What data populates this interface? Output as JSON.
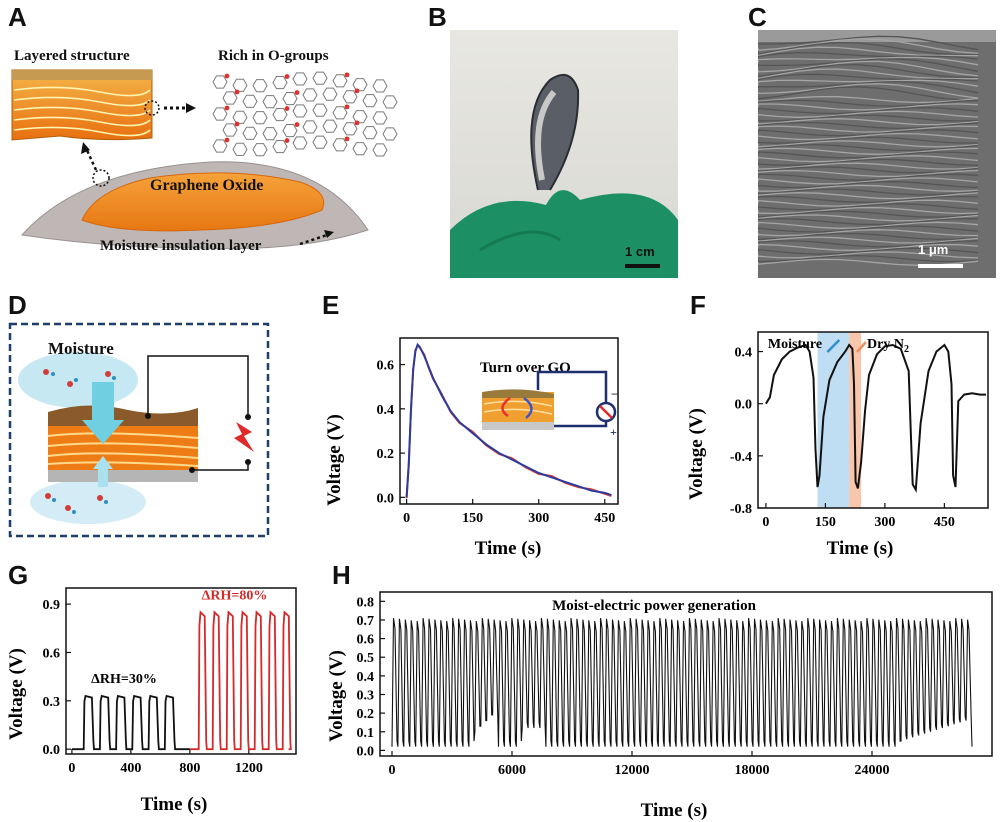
{
  "panels": {
    "A": {
      "letter": "A",
      "layered_label": "Layered structure",
      "rich_label": "Rich in O-groups",
      "go_label": "Graphene Oxide",
      "insulation_label": "Moisture insulation layer"
    },
    "B": {
      "letter": "B",
      "scale_label": "1 cm"
    },
    "C": {
      "letter": "C",
      "scale_label": "1 μm"
    },
    "D": {
      "letter": "D",
      "moisture_label": "Moisture"
    },
    "E": {
      "letter": "E"
    },
    "F": {
      "letter": "F"
    },
    "G": {
      "letter": "G"
    },
    "H": {
      "letter": "H"
    }
  },
  "colors": {
    "orange": "#f08a1e",
    "blue_curve": "#2b3d9a",
    "red_curve": "#e23c3c",
    "panel_g_red": "#d42a2a",
    "moisture_band": "#a9d2ef",
    "dry_band": "#f6b896"
  },
  "chart_data": [
    {
      "panel": "E",
      "type": "line",
      "xlabel": "Time (s)",
      "ylabel": "Voltage (V)",
      "xlim": [
        -15,
        480
      ],
      "ylim": [
        -0.03,
        0.72
      ],
      "xticks": [
        "0",
        "150",
        "300",
        "450"
      ],
      "yticks": [
        "0.0",
        "0.2",
        "0.4",
        "0.6"
      ],
      "annotation": "Turn over GO",
      "series": [
        {
          "x": [
            0,
            5,
            10,
            15,
            20,
            25,
            30,
            40,
            50,
            60,
            80,
            100,
            120,
            150,
            180,
            210,
            240,
            270,
            300,
            330,
            360,
            390,
            420,
            450,
            465
          ],
          "y": [
            0.0,
            0.15,
            0.4,
            0.58,
            0.66,
            0.69,
            0.68,
            0.64,
            0.59,
            0.54,
            0.46,
            0.39,
            0.34,
            0.29,
            0.24,
            0.2,
            0.17,
            0.14,
            0.11,
            0.09,
            0.07,
            0.05,
            0.03,
            0.02,
            0.01
          ]
        }
      ]
    },
    {
      "panel": "F",
      "type": "line",
      "xlabel": "Time (s)",
      "ylabel": "Voltage (V)",
      "xlim": [
        -20,
        560
      ],
      "ylim": [
        -0.8,
        0.55
      ],
      "xticks": [
        "0",
        "150",
        "300",
        "450"
      ],
      "yticks": [
        "-0.8",
        "-0.4",
        "0.0",
        "0.4"
      ],
      "band_labels": [
        "Moisture",
        "Dry N"
      ],
      "dry_subscript": "2",
      "bands": [
        {
          "x0": 130,
          "x1": 210
        },
        {
          "x0": 210,
          "x1": 240
        }
      ],
      "series": [
        {
          "x": [
            0,
            10,
            20,
            40,
            60,
            80,
            100,
            110,
            120,
            125,
            130,
            135,
            145,
            160,
            180,
            200,
            210,
            218,
            222,
            226,
            232,
            240,
            250,
            260,
            280,
            300,
            320,
            340,
            360,
            365,
            370,
            378,
            390,
            410,
            430,
            450,
            460,
            468,
            472,
            478,
            485,
            500,
            520,
            540,
            555
          ],
          "y": [
            0.0,
            0.05,
            0.22,
            0.34,
            0.4,
            0.43,
            0.45,
            0.4,
            0.2,
            -0.35,
            -0.64,
            -0.55,
            -0.1,
            0.18,
            0.32,
            0.4,
            0.45,
            0.42,
            0.15,
            -0.6,
            -0.65,
            -0.45,
            -0.05,
            0.22,
            0.38,
            0.44,
            0.45,
            0.42,
            0.25,
            -0.2,
            -0.62,
            -0.66,
            -0.15,
            0.25,
            0.4,
            0.45,
            0.4,
            0.15,
            -0.55,
            -0.64,
            0.02,
            0.07,
            0.08,
            0.07,
            0.07
          ]
        }
      ]
    },
    {
      "panel": "G",
      "type": "line",
      "xlabel": "Time (s)",
      "ylabel": "Voltage (V)",
      "xlim": [
        -40,
        1520
      ],
      "ylim": [
        -0.03,
        1.0
      ],
      "xticks": [
        "0",
        "400",
        "800",
        "1200"
      ],
      "yticks": [
        "0.0",
        "0.3",
        "0.6",
        "0.9"
      ],
      "annotations": [
        "ΔRH=30%",
        "ΔRH=80%"
      ],
      "series": [
        {
          "name_hidden": true,
          "pulse_starts": [
            80,
            190,
            300,
            410,
            520,
            630
          ],
          "pulse_width": 70,
          "period": 110,
          "peak": 0.33,
          "x_range": [
            0,
            800
          ]
        },
        {
          "name_hidden": true,
          "pulse_starts": [
            860,
            955,
            1050,
            1145,
            1240,
            1335,
            1430
          ],
          "pulse_width": 55,
          "period": 95,
          "peak": 0.85,
          "x_range": [
            800,
            1470
          ]
        }
      ]
    },
    {
      "panel": "H",
      "type": "line",
      "title": "Moist-electric power generation",
      "xlabel": "Time (s)",
      "ylabel": "Voltage (V)",
      "xlim": [
        -600,
        30000
      ],
      "ylim": [
        -0.03,
        0.85
      ],
      "xticks": [
        "0",
        "6000",
        "12000",
        "18000",
        "24000"
      ],
      "yticks": [
        "0.0",
        "0.1",
        "0.2",
        "0.3",
        "0.4",
        "0.5",
        "0.6",
        "0.7",
        "0.8"
      ],
      "series": [
        {
          "cycles": 98,
          "x_range": [
            0,
            29000
          ],
          "peak": 0.71,
          "trough": 0.02
        }
      ]
    }
  ]
}
